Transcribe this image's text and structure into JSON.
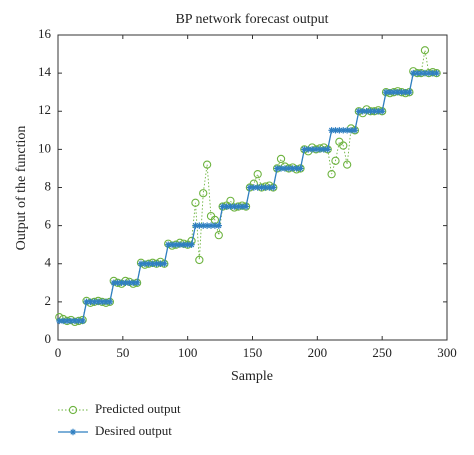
{
  "chart_data": {
    "type": "line",
    "title": "BP network forecast output",
    "x_label": "Sample",
    "y_label": "Output of the function",
    "xlim": [
      0,
      300
    ],
    "xticks": [
      0,
      50,
      100,
      150,
      200,
      250,
      300
    ],
    "ylim": [
      0,
      16
    ],
    "yticks": [
      0,
      2,
      4,
      6,
      8,
      10,
      12,
      14,
      16
    ],
    "legend": "bottom",
    "x": [
      1,
      4,
      7,
      10,
      13,
      16,
      19,
      22,
      25,
      28,
      31,
      34,
      37,
      40,
      43,
      46,
      49,
      52,
      55,
      58,
      61,
      64,
      67,
      70,
      73,
      76,
      79,
      82,
      85,
      88,
      91,
      94,
      97,
      100,
      103,
      106,
      109,
      112,
      115,
      118,
      121,
      124,
      127,
      130,
      133,
      136,
      139,
      142,
      145,
      148,
      151,
      154,
      157,
      160,
      163,
      166,
      169,
      172,
      175,
      178,
      181,
      184,
      187,
      190,
      193,
      196,
      199,
      202,
      205,
      208,
      211,
      214,
      217,
      220,
      223,
      226,
      229,
      232,
      235,
      238,
      241,
      244,
      247,
      250,
      253,
      256,
      259,
      262,
      265,
      268,
      271,
      274,
      277,
      280,
      283,
      286,
      289,
      292
    ],
    "series": [
      {
        "name": "Predicted output",
        "color": "#6db33f",
        "marker": "circle",
        "line": "dotted",
        "values": [
          1.2,
          1.1,
          1.0,
          1.05,
          0.95,
          1.0,
          1.05,
          2.05,
          1.95,
          2.0,
          2.05,
          2.0,
          1.95,
          2.0,
          3.1,
          3.0,
          2.95,
          3.1,
          3.05,
          2.95,
          3.0,
          4.05,
          3.95,
          4.0,
          4.05,
          4.0,
          4.1,
          4.0,
          5.05,
          4.95,
          5.0,
          5.1,
          5.05,
          5.0,
          5.2,
          7.2,
          4.2,
          7.7,
          9.2,
          6.5,
          6.3,
          5.5,
          7.0,
          7.05,
          7.3,
          6.95,
          7.0,
          7.05,
          7.0,
          8.0,
          8.2,
          8.7,
          8.0,
          8.05,
          8.1,
          8.0,
          9.0,
          9.5,
          9.1,
          9.0,
          9.05,
          8.95,
          9.0,
          10.0,
          9.9,
          10.1,
          10.0,
          10.05,
          10.1,
          10.0,
          8.7,
          9.4,
          10.4,
          10.2,
          9.2,
          11.1,
          11.0,
          12.0,
          11.9,
          12.1,
          12.0,
          12.0,
          12.05,
          12.0,
          13.0,
          12.95,
          13.0,
          13.05,
          13.0,
          12.95,
          13.0,
          14.1,
          14.0,
          14.0,
          15.2,
          14.0,
          14.05,
          14.0
        ]
      },
      {
        "name": "Desired output",
        "color": "#2f7fc1",
        "marker": "star",
        "line": "solid",
        "values": [
          1,
          1,
          1,
          1,
          1,
          1,
          1,
          2,
          2,
          2,
          2,
          2,
          2,
          2,
          3,
          3,
          3,
          3,
          3,
          3,
          3,
          4,
          4,
          4,
          4,
          4,
          4,
          4,
          5,
          5,
          5,
          5,
          5,
          5,
          5,
          6,
          6,
          6,
          6,
          6,
          6,
          6,
          7,
          7,
          7,
          7,
          7,
          7,
          7,
          8,
          8,
          8,
          8,
          8,
          8,
          8,
          9,
          9,
          9,
          9,
          9,
          9,
          9,
          10,
          10,
          10,
          10,
          10,
          10,
          10,
          11,
          11,
          11,
          11,
          11,
          11,
          11,
          12,
          12,
          12,
          12,
          12,
          12,
          12,
          13,
          13,
          13,
          13,
          13,
          13,
          13,
          14,
          14,
          14,
          14,
          14,
          14,
          14
        ]
      }
    ]
  }
}
